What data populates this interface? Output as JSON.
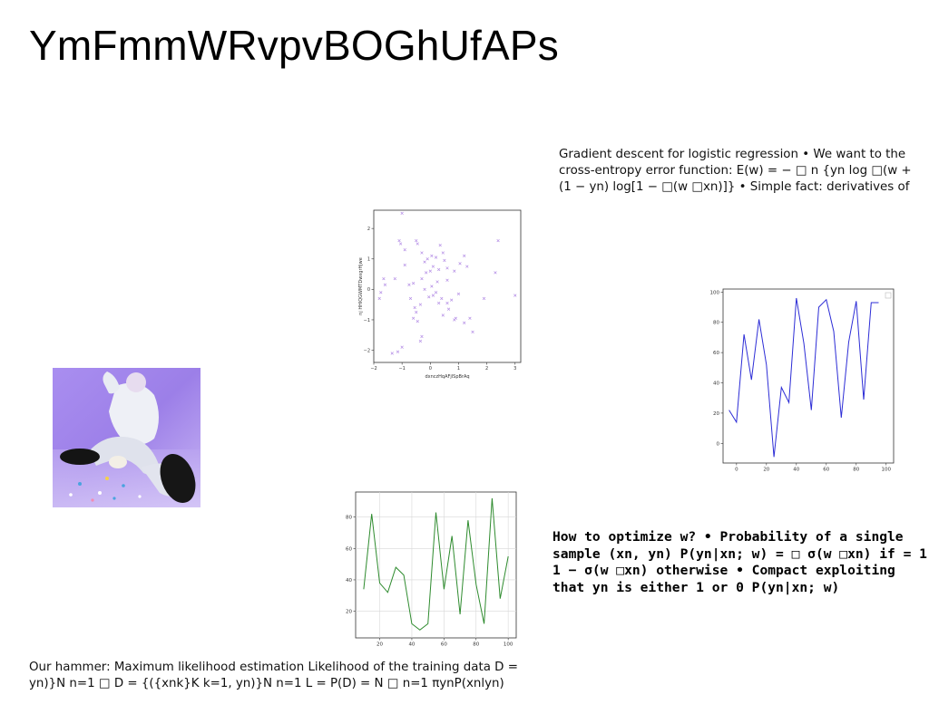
{
  "page": {
    "title": "YmFmmWRvpvBOGhUfAPs"
  },
  "text_blocks": {
    "gradient": "Gradient descent for logistic regression • We want to the cross-entropy error function: E(w) = − □ n {yn log □(w + (1 − yn) log[1 − □(w □xn)]} • Simple fact: derivatives of",
    "optimize": "How to optimize w? • Probability of a single sample (xn, yn) P(yn|xn; w) = □ σ(w □xn) if = 1 1 − σ(w □xn) otherwise • Compact exploiting that yn is either 1 or 0 P(yn|xn; w)",
    "hammer": "Our hammer: Maximum likelihood estimation Likelihood of the training data D = yn)}N n=1 □ D = {({xnk}K k=1, yn)}N n=1 L = P(D) = N □ n=1 πynP(xnlyn)"
  },
  "photo": {
    "description": "person-sitting-purple-background"
  },
  "chart_data": [
    {
      "type": "scatter",
      "xlabel": "dxnczHqAFjlSpBrAq",
      "ylabel": "nj HHlQGWMTDwxgrHjwe",
      "xlim": [
        -2,
        3.2
      ],
      "ylim": [
        -2.4,
        2.6
      ],
      "xticks": [
        "−2",
        "−1",
        "0",
        "1",
        "2",
        "3"
      ],
      "yticks": [
        "−2",
        "−1",
        "0",
        "1",
        "2"
      ],
      "marker": "x",
      "color": "#b58fe6",
      "points": [
        [
          -1.0,
          2.5
        ],
        [
          -1.1,
          1.6
        ],
        [
          -1.05,
          1.5
        ],
        [
          -0.9,
          1.3
        ],
        [
          -0.5,
          1.6
        ],
        [
          -0.45,
          1.5
        ],
        [
          -0.3,
          1.2
        ],
        [
          -0.2,
          0.9
        ],
        [
          -0.1,
          1.0
        ],
        [
          0.05,
          1.1
        ],
        [
          0.2,
          1.05
        ],
        [
          0.35,
          1.45
        ],
        [
          0.45,
          1.2
        ],
        [
          0.5,
          0.95
        ],
        [
          0.1,
          0.75
        ],
        [
          0.3,
          0.65
        ],
        [
          0.6,
          0.7
        ],
        [
          0.85,
          0.6
        ],
        [
          1.05,
          0.85
        ],
        [
          1.2,
          1.1
        ],
        [
          1.3,
          0.75
        ],
        [
          2.4,
          1.6
        ],
        [
          2.3,
          0.55
        ],
        [
          3.0,
          -0.2
        ],
        [
          1.9,
          -0.3
        ],
        [
          1.4,
          -0.95
        ],
        [
          1.5,
          -1.4
        ],
        [
          1.2,
          -1.1
        ],
        [
          0.9,
          -0.95
        ],
        [
          0.85,
          -1.0
        ],
        [
          0.6,
          -0.45
        ],
        [
          0.65,
          -0.65
        ],
        [
          0.4,
          -0.3
        ],
        [
          0.3,
          -0.45
        ],
        [
          0.2,
          -0.1
        ],
        [
          0.1,
          -0.2
        ],
        [
          0.05,
          0.1
        ],
        [
          -0.05,
          -0.25
        ],
        [
          -0.2,
          0.0
        ],
        [
          -0.3,
          0.35
        ],
        [
          -0.35,
          -0.5
        ],
        [
          -0.5,
          -0.75
        ],
        [
          -0.45,
          -1.05
        ],
        [
          -0.6,
          -0.95
        ],
        [
          -0.55,
          -0.6
        ],
        [
          -0.75,
          0.15
        ],
        [
          -0.9,
          0.8
        ],
        [
          -1.25,
          0.35
        ],
        [
          -1.6,
          0.15
        ],
        [
          -1.75,
          -0.1
        ],
        [
          -1.8,
          -0.3
        ],
        [
          -1.65,
          0.35
        ],
        [
          -1.0,
          -1.9
        ],
        [
          -1.15,
          -2.05
        ],
        [
          -1.35,
          -2.1
        ],
        [
          -0.3,
          -1.55
        ],
        [
          -0.35,
          -1.7
        ],
        [
          0.0,
          0.6
        ],
        [
          -0.15,
          0.55
        ],
        [
          0.25,
          0.25
        ],
        [
          0.6,
          0.3
        ],
        [
          0.75,
          -0.35
        ],
        [
          -0.6,
          0.2
        ],
        [
          -0.7,
          -0.3
        ],
        [
          0.45,
          -0.85
        ],
        [
          1.0,
          -0.15
        ]
      ]
    },
    {
      "type": "line",
      "color": "#2d2dd6",
      "xlim": [
        -9,
        105
      ],
      "ylim": [
        -13,
        102
      ],
      "xticks": [
        0,
        20,
        40,
        60,
        80,
        100
      ],
      "yticks": [
        0,
        20,
        40,
        60,
        80,
        100
      ],
      "x": [
        -5,
        0,
        5,
        10,
        15,
        20,
        25,
        30,
        35,
        40,
        45,
        50,
        55,
        60,
        65,
        70,
        75,
        80,
        85,
        90,
        95
      ],
      "y": [
        22,
        14,
        72,
        42,
        82,
        52,
        -9,
        37,
        27,
        96,
        66,
        22,
        90,
        95,
        74,
        17,
        67,
        94,
        29,
        93,
        93
      ],
      "legend": "top-right"
    },
    {
      "type": "line",
      "color": "#2e8b2e",
      "xlim": [
        5,
        105
      ],
      "ylim": [
        3,
        96
      ],
      "xticks": [
        20,
        40,
        60,
        80,
        100
      ],
      "yticks": [
        20,
        40,
        60,
        80
      ],
      "grid": true,
      "x": [
        10,
        15,
        20,
        25,
        30,
        35,
        40,
        45,
        50,
        55,
        60,
        65,
        70,
        75,
        80,
        85,
        90,
        95,
        100
      ],
      "y": [
        34,
        82,
        38,
        32,
        48,
        43,
        12,
        8,
        12,
        83,
        34,
        68,
        18,
        78,
        37,
        12,
        92,
        28,
        55
      ]
    }
  ]
}
